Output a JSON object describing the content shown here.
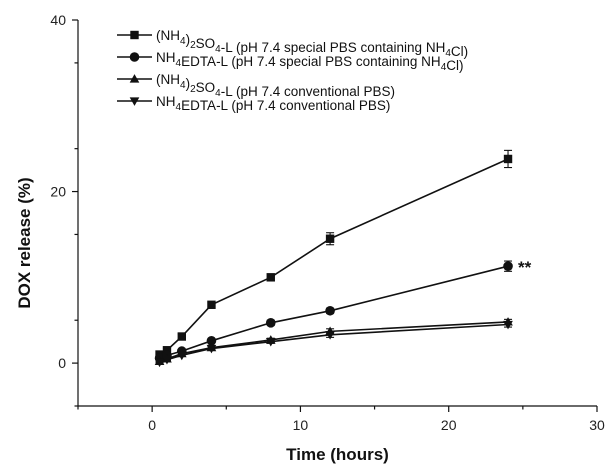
{
  "chart_data": {
    "type": "line",
    "xlabel": "Time (hours)",
    "ylabel": "DOX release (%)",
    "xlim": [
      -5,
      30
    ],
    "ylim": [
      -5,
      40
    ],
    "xticks": [
      0,
      10,
      20,
      30
    ],
    "yticks": [
      0,
      20,
      40
    ],
    "grid": false,
    "legend_position": "top-left",
    "x": [
      0.5,
      1,
      2,
      4,
      8,
      12,
      24
    ],
    "series": [
      {
        "name": "(NH4)2SO4-L (pH 7.4 special PBS containing NH4Cl)",
        "marker": "square",
        "values": [
          1.0,
          1.5,
          3.1,
          6.8,
          10.0,
          14.5,
          23.8
        ],
        "errors": [
          0.2,
          0.2,
          0.3,
          0.3,
          0.4,
          0.7,
          1.0
        ]
      },
      {
        "name": "NH4EDTA-L (pH 7.4 special PBS containing NH4Cl)",
        "marker": "circle",
        "values": [
          0.6,
          0.9,
          1.4,
          2.6,
          4.7,
          6.1,
          11.3
        ],
        "errors": [
          0.1,
          0.1,
          0.2,
          0.2,
          0.3,
          0.3,
          0.6
        ]
      },
      {
        "name": "(NH4)2SO4-L (pH 7.4 conventional PBS)",
        "marker": "triangle-up",
        "values": [
          0.2,
          0.5,
          1.1,
          1.8,
          2.7,
          3.7,
          4.8
        ],
        "errors": [
          0.1,
          0.1,
          0.1,
          0.2,
          0.2,
          0.3,
          0.3
        ]
      },
      {
        "name": "NH4EDTA-L (pH 7.4 conventional PBS)",
        "marker": "triangle-down",
        "values": [
          0.1,
          0.4,
          0.9,
          1.7,
          2.5,
          3.3,
          4.5
        ],
        "errors": [
          0.1,
          0.1,
          0.1,
          0.2,
          0.2,
          0.3,
          0.3
        ]
      }
    ],
    "annotation": {
      "text": "**",
      "x": 24,
      "y": 11.3
    }
  },
  "legend_labels": [
    {
      "pre": "(NH",
      "sub1": "4",
      "mid1": ")",
      "sub2": "2",
      "mid2": "SO",
      "sub3": "4",
      "post": "-L (pH 7.4 special PBS containing NH",
      "sub4": "4",
      "end": "Cl)"
    },
    {
      "pre": "NH",
      "sub1": "4",
      "mid1": "EDTA-L (pH 7.4 special PBS containing NH",
      "sub2": "4",
      "mid2": "Cl)",
      "sub3": "",
      "post": "",
      "sub4": "",
      "end": ""
    },
    {
      "pre": "(NH",
      "sub1": "4",
      "mid1": ")",
      "sub2": "2",
      "mid2": "SO",
      "sub3": "4",
      "post": "-L (pH 7.4 conventional PBS)",
      "sub4": "",
      "end": ""
    },
    {
      "pre": "NH",
      "sub1": "4",
      "mid1": "EDTA-L (pH 7.4 conventional PBS)",
      "sub2": "",
      "mid2": "",
      "sub3": "",
      "post": "",
      "sub4": "",
      "end": ""
    }
  ]
}
